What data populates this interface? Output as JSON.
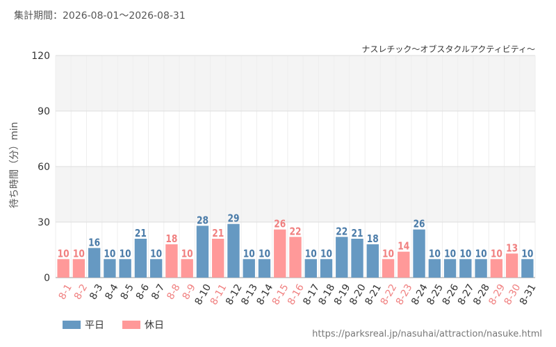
{
  "header": {
    "period_label": "集計期間：2026-08-01～2026-08-31",
    "attraction": "ナスレチック～オブスタクルアクティビティ～",
    "source": "https://parksreal.jp/nasuhai/attraction/nasuke.html"
  },
  "colors": {
    "weekday": "#6699c2",
    "holiday": "#ff9999",
    "weekday_text": "#4a7ba8",
    "holiday_text": "#f08080",
    "band": "#f4f4f4",
    "grid": "#dddddd"
  },
  "chart_data": {
    "type": "bar",
    "ylabel": "待ち時間（分）min",
    "ylim": [
      0,
      120
    ],
    "yticks": [
      0,
      30,
      60,
      90,
      120
    ],
    "legend_position": "bottom-left",
    "series": [
      {
        "name": "平日",
        "key": "weekday"
      },
      {
        "name": "休日",
        "key": "holiday"
      }
    ],
    "categories": [
      "8-1",
      "8-2",
      "8-3",
      "8-4",
      "8-5",
      "8-6",
      "8-7",
      "8-8",
      "8-9",
      "8-10",
      "8-11",
      "8-12",
      "8-13",
      "8-14",
      "8-15",
      "8-16",
      "8-17",
      "8-18",
      "8-19",
      "8-20",
      "8-21",
      "8-22",
      "8-23",
      "8-24",
      "8-25",
      "8-26",
      "8-27",
      "8-28",
      "8-29",
      "8-30",
      "8-31"
    ],
    "values": [
      10,
      10,
      16,
      10,
      10,
      21,
      10,
      18,
      10,
      28,
      21,
      29,
      10,
      10,
      26,
      22,
      10,
      10,
      22,
      21,
      18,
      10,
      14,
      26,
      10,
      10,
      10,
      10,
      10,
      13,
      10
    ],
    "day_type": [
      "holiday",
      "holiday",
      "weekday",
      "weekday",
      "weekday",
      "weekday",
      "weekday",
      "holiday",
      "holiday",
      "weekday",
      "holiday",
      "weekday",
      "weekday",
      "weekday",
      "holiday",
      "holiday",
      "weekday",
      "weekday",
      "weekday",
      "weekday",
      "weekday",
      "holiday",
      "holiday",
      "weekday",
      "weekday",
      "weekday",
      "weekday",
      "weekday",
      "holiday",
      "holiday",
      "weekday"
    ]
  }
}
